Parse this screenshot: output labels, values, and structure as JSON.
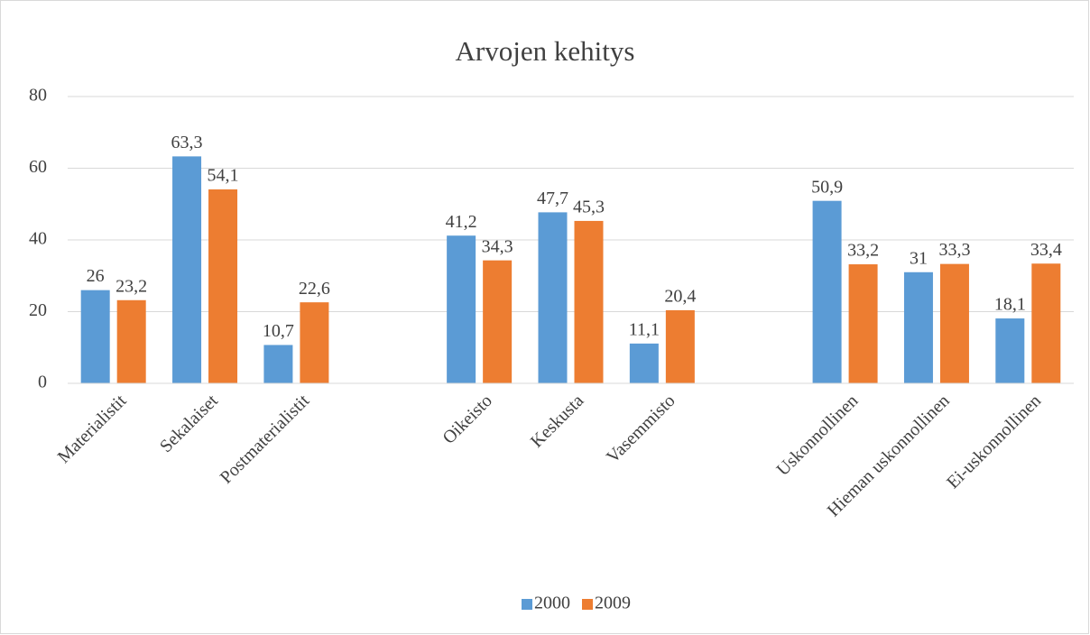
{
  "chart_data": {
    "type": "bar",
    "title": "Arvojen kehitys",
    "categories": [
      "Materialistit",
      "Sekalaiset",
      "Postmaterialistit",
      null,
      "Oikeisto",
      "Keskusta",
      "Vasemmisto",
      null,
      "Uskonnollinen",
      "Hieman uskonnollinen",
      "Ei-uskonnollinen"
    ],
    "series": [
      {
        "name": "2000",
        "color": "#5b9bd5",
        "values": [
          26,
          63.3,
          10.7,
          null,
          41.2,
          47.7,
          11.1,
          null,
          50.9,
          31,
          18.1
        ],
        "value_labels": [
          "26",
          "63,3",
          "10,7",
          null,
          "41,2",
          "47,7",
          "11,1",
          null,
          "50,9",
          "31",
          "18,1"
        ]
      },
      {
        "name": "2009",
        "color": "#ed7d31",
        "values": [
          23.2,
          54.1,
          22.6,
          null,
          34.3,
          45.3,
          20.4,
          null,
          33.2,
          33.3,
          33.4
        ],
        "value_labels": [
          "23,2",
          "54,1",
          "22,6",
          null,
          "34,3",
          "45,3",
          "20,4",
          null,
          "33,2",
          "33,3",
          "33,4"
        ]
      }
    ],
    "ylim": [
      0,
      80
    ],
    "yticks": [
      0,
      20,
      40,
      60,
      80
    ],
    "grid": true,
    "legend": "bottom"
  }
}
